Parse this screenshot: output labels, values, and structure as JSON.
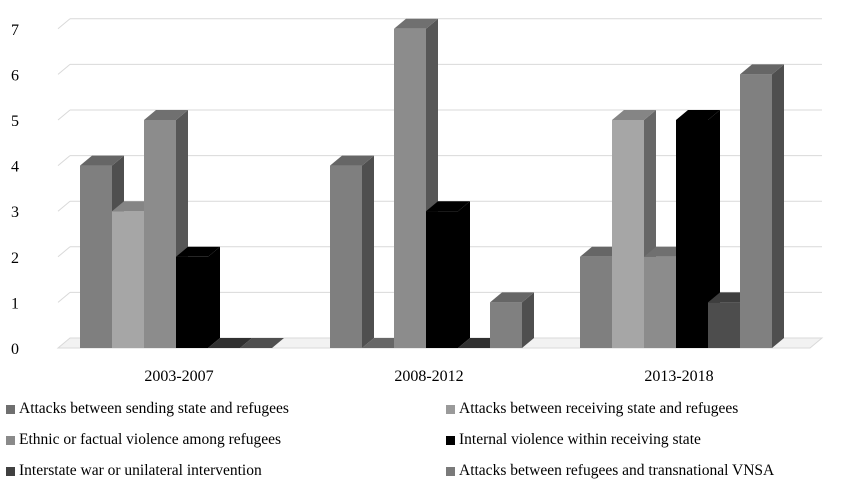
{
  "chart_data": {
    "type": "bar",
    "title": "",
    "xlabel": "",
    "ylabel": "",
    "categories": [
      "2003-2007",
      "2008-2012",
      "2013-2018"
    ],
    "ylim": [
      0,
      7
    ],
    "yticks": [
      "0",
      "1",
      "2",
      "3",
      "4",
      "5",
      "6",
      "7"
    ],
    "grid": true,
    "legend_position": "bottom",
    "series": [
      {
        "name": "Attacks between sending state and refugees",
        "values": [
          4,
          4,
          2
        ],
        "color": "#7f7f7f"
      },
      {
        "name": "Ethnic or factual violence among refugees",
        "values": [
          3,
          0,
          5
        ],
        "color": "#a6a6a6"
      },
      {
        "name": "Interstate war or unilateral intervention",
        "values": [
          5,
          7,
          2
        ],
        "color": "#8c8c8c"
      },
      {
        "name": "Attacks between receiving state and refugees",
        "values": [
          2,
          3,
          5
        ],
        "color": "#000000"
      },
      {
        "name": "Internal violence within receiving state",
        "values": [
          0,
          0,
          1
        ],
        "color": "#4d4d4d"
      },
      {
        "name": "Attacks between refugees and transnational VNSA",
        "values": [
          0,
          1,
          6
        ],
        "color": "#808080"
      }
    ],
    "legend": [
      {
        "name": "Attacks between sending state and refugees",
        "color": "#6f6f6f"
      },
      {
        "name": "Attacks between receiving state and refugees",
        "color": "#9a9a9a"
      },
      {
        "name": "Ethnic or factual violence among refugees",
        "color": "#8a8a8a"
      },
      {
        "name": "Internal violence within receiving state",
        "color": "#000000"
      },
      {
        "name": "Interstate war or unilateral intervention",
        "color": "#404040"
      },
      {
        "name": "Attacks between refugees and transnational VNSA",
        "color": "#7a7a7a"
      }
    ]
  }
}
